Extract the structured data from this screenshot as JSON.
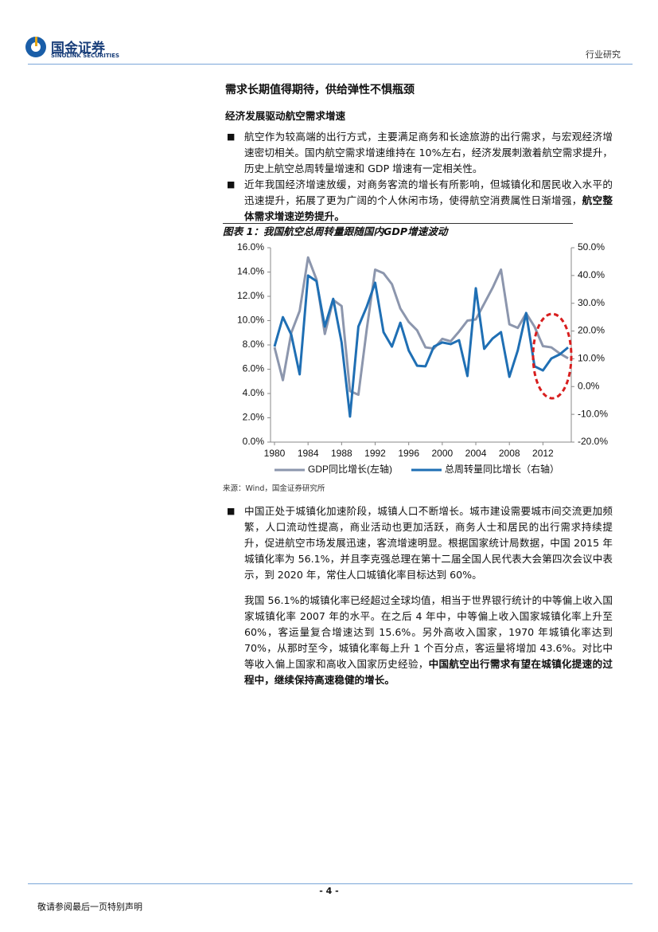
{
  "header": {
    "logo_cn": "国金证券",
    "logo_en": "SINOLINK SECURITIES",
    "section": "行业研究"
  },
  "heading": "需求长期值得期待，供给弹性不惧瓶颈",
  "subheading": "经济发展驱动航空需求增速",
  "bullets": [
    {
      "text": "航空作为较高端的出行方式，主要满足商务和长途旅游的出行需求，与宏观经济增速密切相关。国内航空需求增速维持在 10%左右，经济发展刺激着航空需求提升，历史上航空总周转量增速和 GDP 增速有一定相关性。"
    },
    {
      "text": "近年我国经济增速放缓，对商务客流的增长有所影响，但城镇化和居民收入水平的迅速提升，拓展了更为广阔的个人休闲市场，使得航空消费属性日渐增强，",
      "emphasis": "航空整体需求增速逆势提升。"
    }
  ],
  "figure_caption": "图表 1：我国航空总周转量跟随国内GDP增速波动",
  "chart_data": {
    "type": "line",
    "x": [
      1980,
      1981,
      1982,
      1983,
      1984,
      1985,
      1986,
      1987,
      1988,
      1989,
      1990,
      1991,
      1992,
      1993,
      1994,
      1995,
      1996,
      1997,
      1998,
      1999,
      2000,
      2001,
      2002,
      2003,
      2004,
      2005,
      2006,
      2007,
      2008,
      2009,
      2010,
      2011,
      2012,
      2013,
      2014,
      2015
    ],
    "xlim": [
      1980,
      2015
    ],
    "xticks": [
      1980,
      1984,
      1988,
      1992,
      1996,
      2000,
      2004,
      2008,
      2012
    ],
    "ylim": [
      0,
      16
    ],
    "yticks": [
      {
        "value": 0,
        "label": "0.0%"
      },
      {
        "value": 2,
        "label": "2.0%"
      },
      {
        "value": 4,
        "label": "4.0%"
      },
      {
        "value": 6,
        "label": "6.0%"
      },
      {
        "value": 8,
        "label": "8.0%"
      },
      {
        "value": 10,
        "label": "10.0%"
      },
      {
        "value": 12,
        "label": "12.0%"
      },
      {
        "value": 14,
        "label": "14.0%"
      },
      {
        "value": 16,
        "label": "16.0%"
      }
    ],
    "y2lim": [
      -20,
      50
    ],
    "y2ticks": [
      {
        "value": -20,
        "label": "-20.0%"
      },
      {
        "value": -10,
        "label": "-10.0%"
      },
      {
        "value": 0,
        "label": "0.0%"
      },
      {
        "value": 10,
        "label": "10.0%"
      },
      {
        "value": 20,
        "label": "20.0%"
      },
      {
        "value": 30,
        "label": "30.0%"
      },
      {
        "value": 40,
        "label": "40.0%"
      },
      {
        "value": 50,
        "label": "50.0%"
      }
    ],
    "series": [
      {
        "name": "GDP同比增长(左轴)",
        "color": "#8c96ad",
        "values": [
          7.8,
          5.1,
          9.0,
          10.8,
          15.2,
          13.4,
          8.9,
          11.7,
          11.2,
          4.2,
          3.9,
          9.3,
          14.2,
          13.9,
          13.0,
          11.0,
          9.9,
          9.2,
          7.8,
          7.7,
          8.5,
          8.3,
          9.1,
          10.0,
          10.1,
          11.4,
          12.7,
          14.2,
          9.7,
          9.4,
          10.6,
          9.5,
          7.9,
          7.8,
          7.3,
          6.9
        ]
      },
      {
        "name": "总周转量同比增长（右轴）",
        "color": "#1f6fb4",
        "axis": "y2",
        "values": [
          14.4,
          25,
          18.7,
          4.4,
          40,
          38,
          21.6,
          31.6,
          15.9,
          -10.8,
          21.6,
          28.8,
          37.4,
          19.6,
          14.4,
          23,
          13,
          7.5,
          7.3,
          14.4,
          15.9,
          15.3,
          16.7,
          3.8,
          35.4,
          13.6,
          17.3,
          19.6,
          3.5,
          13,
          26.5,
          7.3,
          5.8,
          10.1,
          11.6,
          14.1
        ]
      }
    ]
  },
  "source": "来源：Wind，国金证券研究所",
  "bullet3": "中国正处于城镇化加速阶段，城镇人口不断增长。城市建设需要城市间交流更加频繁，人口流动性提高，商业活动也更加活跃，商务人士和居民的出行需求持续提升，促进航空市场发展迅速，客流增速明显。根据国家统计局数据，中国 2015 年城镇化率为 56.1%，并且李克强总理在第十二届全国人民代表大会第四次会议中表示，到 2020 年，常住人口城镇化率目标达到 60%。",
  "paragraph": {
    "text": "我国 56.1%的城镇化率已经超过全球均值，相当于世界银行统计的中等偏上收入国家城镇化率 2007 年的水平。在之后 4 年中，中等偏上收入国家城镇化率上升至 60%，客运量复合增速达到 15.6%。另外高收入国家，1970 年城镇化率达到 70%，从那时至今，城镇化率每上升 1 个百分点，客运量将增加 43.6%。对比中等收入偏上国家和高收入国家历史经验，",
    "emphasis": "中国航空出行需求有望在城镇化提速的过程中，继续保持高速稳健的增长。"
  },
  "footer": {
    "page": "- 4 -",
    "disclaimer": "敬请参阅最后一页特别声明"
  }
}
